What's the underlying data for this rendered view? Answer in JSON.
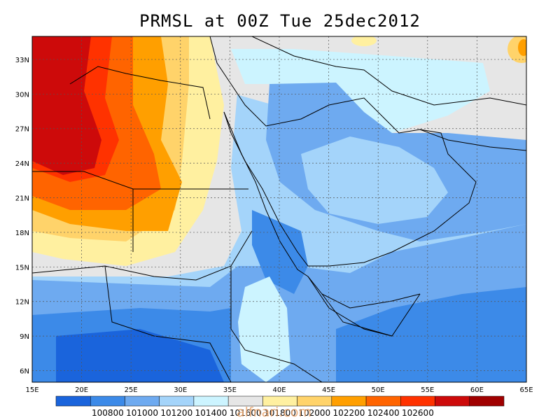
{
  "title": "PRMSL at 00Z Tue 25dec2012",
  "watermark": "alfnari.com",
  "lon_ticks": [
    "15E",
    "20E",
    "25E",
    "30E",
    "35E",
    "40E",
    "45E",
    "50E",
    "55E",
    "60E",
    "65E"
  ],
  "lat_ticks": [
    "33N",
    "30N",
    "27N",
    "24N",
    "21N",
    "18N",
    "15N",
    "12N",
    "9N",
    "6N"
  ],
  "lon_range": [
    15,
    65
  ],
  "lat_range": [
    5,
    35
  ],
  "colorbar": {
    "colors": [
      "#1a64dc",
      "#3c8ae8",
      "#6eaaf0",
      "#a4d4fa",
      "#ccf4ff",
      "#e6e6e6",
      "#fff0a0",
      "#ffd36a",
      "#ff9f00",
      "#ff6400",
      "#ff3200",
      "#cd0a0a",
      "#a00000"
    ],
    "labels": [
      "100800",
      "101000",
      "101200",
      "101400",
      "101600",
      "101800",
      "102000",
      "102200",
      "102400",
      "102600"
    ]
  }
}
